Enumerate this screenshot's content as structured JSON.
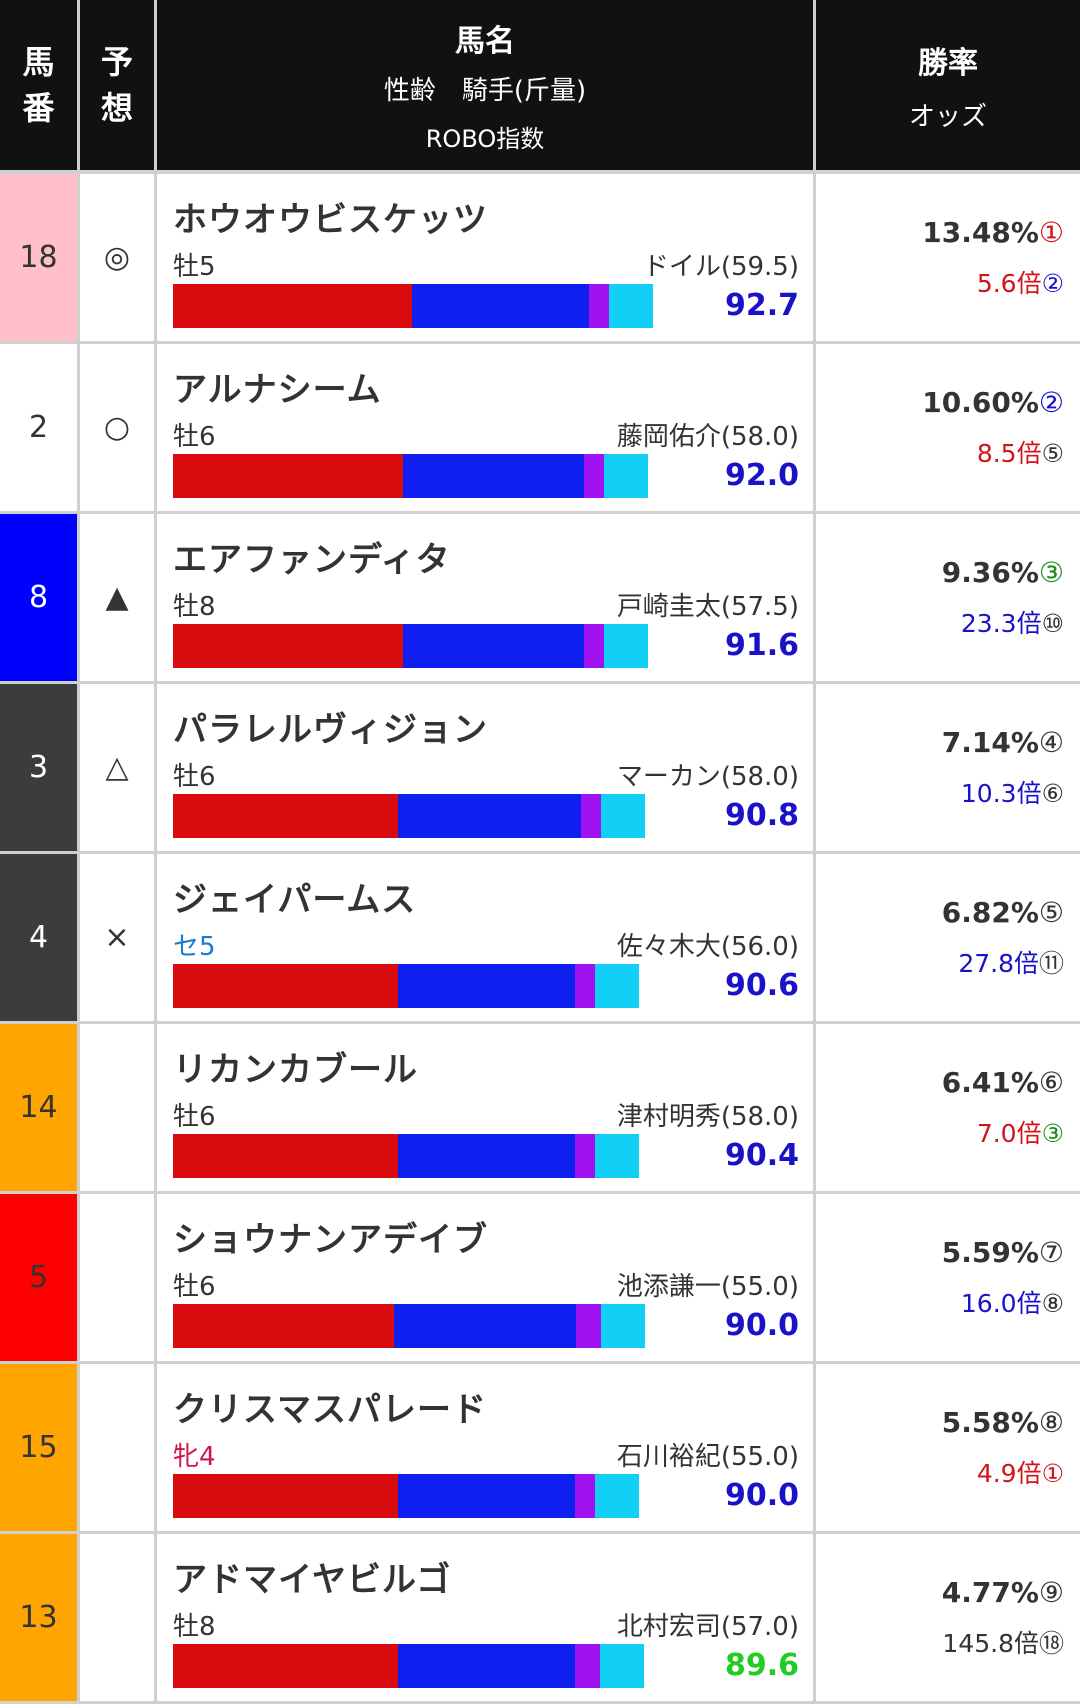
{
  "header": {
    "col_number": [
      "馬",
      "番"
    ],
    "col_prediction": [
      "予",
      "想"
    ],
    "col_name_title": "馬名",
    "col_name_sub": "性齢　騎手(斤量)",
    "col_name_sub2": "ROBO指数",
    "col_win_title": "勝率",
    "col_win_sub": "オッズ"
  },
  "colors": {
    "gate_pink": "#ffc0cb",
    "gate_white": "#ffffff",
    "gate_blue": "#0000ff",
    "gate_dark": "#3c3c3c",
    "gate_orange": "#ffa500",
    "gate_red": "#ff0000"
  },
  "rows": [
    {
      "number": "18",
      "gate_color": "#ffc0cb",
      "num_color": "#333333",
      "mark": "◎",
      "name": "ホウオウビスケッツ",
      "sex_age": "牡5",
      "sex_color": "#333333",
      "jockey": "ドイル(59.5)",
      "index": "92.7",
      "index_color": "#1a12c8",
      "bar": [
        0.374,
        0.276,
        0.032,
        0.068
      ],
      "win_pct": "13.48%",
      "win_rank": "①",
      "win_rank_color": "#d0141a",
      "odds": "5.6倍",
      "odds_color": "#d0141a",
      "odds_rank": "②",
      "odds_rank_color": "#1a12c8"
    },
    {
      "number": "2",
      "gate_color": "#ffffff",
      "num_color": "#333333",
      "mark": "○",
      "name": "アルナシーム",
      "sex_age": "牡6",
      "sex_color": "#333333",
      "jockey": "藤岡佑介(58.0)",
      "index": "92.0",
      "index_color": "#1a12c8",
      "bar": [
        0.36,
        0.283,
        0.031,
        0.068
      ],
      "win_pct": "10.60%",
      "win_rank": "②",
      "win_rank_color": "#1a12c8",
      "odds": "8.5倍",
      "odds_color": "#d0141a",
      "odds_rank": "⑤",
      "odds_rank_color": "#333333"
    },
    {
      "number": "8",
      "gate_color": "#0000ff",
      "num_color": "#ffffff",
      "mark": "▲",
      "name": "エアファンディタ",
      "sex_age": "牡8",
      "sex_color": "#333333",
      "jockey": "戸崎圭太(57.5)",
      "index": "91.6",
      "index_color": "#1a12c8",
      "bar": [
        0.36,
        0.283,
        0.032,
        0.068
      ],
      "win_pct": "9.36%",
      "win_rank": "③",
      "win_rank_color": "#1a8a1a",
      "odds": "23.3倍",
      "odds_color": "#1a12c8",
      "odds_rank": "⑩",
      "odds_rank_color": "#333333"
    },
    {
      "number": "3",
      "gate_color": "#3c3c3c",
      "num_color": "#ffffff",
      "mark": "△",
      "name": "パラレルヴィジョン",
      "sex_age": "牡6",
      "sex_color": "#333333",
      "jockey": "マーカン(58.0)",
      "index": "90.8",
      "index_color": "#1a12c8",
      "bar": [
        0.352,
        0.286,
        0.031,
        0.069
      ],
      "win_pct": "7.14%",
      "win_rank": "④",
      "win_rank_color": "#333333",
      "odds": "10.3倍",
      "odds_color": "#1a12c8",
      "odds_rank": "⑥",
      "odds_rank_color": "#333333"
    },
    {
      "number": "4",
      "gate_color": "#3c3c3c",
      "num_color": "#ffffff",
      "mark": "×",
      "name": "ジェイパームス",
      "sex_age": "セ5",
      "sex_color": "#1a7ad0",
      "jockey": "佐々木大(56.0)",
      "index": "90.6",
      "index_color": "#1a12c8",
      "bar": [
        0.352,
        0.276,
        0.031,
        0.069
      ],
      "win_pct": "6.82%",
      "win_rank": "⑤",
      "win_rank_color": "#333333",
      "odds": "27.8倍",
      "odds_color": "#1a12c8",
      "odds_rank": "⑪",
      "odds_rank_color": "#333333"
    },
    {
      "number": "14",
      "gate_color": "#ffa500",
      "num_color": "#333333",
      "mark": "",
      "name": "リカンカブール",
      "sex_age": "牡6",
      "sex_color": "#333333",
      "jockey": "津村明秀(58.0)",
      "index": "90.4",
      "index_color": "#1a12c8",
      "bar": [
        0.352,
        0.276,
        0.031,
        0.069
      ],
      "win_pct": "6.41%",
      "win_rank": "⑥",
      "win_rank_color": "#333333",
      "odds": "7.0倍",
      "odds_color": "#d0141a",
      "odds_rank": "③",
      "odds_rank_color": "#1a8a1a"
    },
    {
      "number": "5",
      "gate_color": "#ff0000",
      "num_color": "#333333",
      "mark": "",
      "name": "ショウナンアデイブ",
      "sex_age": "牡6",
      "sex_color": "#333333",
      "jockey": "池添謙一(55.0)",
      "index": "90.0",
      "index_color": "#1a12c8",
      "bar": [
        0.345,
        0.284,
        0.039,
        0.069
      ],
      "win_pct": "5.59%",
      "win_rank": "⑦",
      "win_rank_color": "#333333",
      "odds": "16.0倍",
      "odds_color": "#1a12c8",
      "odds_rank": "⑧",
      "odds_rank_color": "#333333"
    },
    {
      "number": "15",
      "gate_color": "#ffa500",
      "num_color": "#333333",
      "mark": "",
      "name": "クリスマスパレード",
      "sex_age": "牝4",
      "sex_color": "#d0144a",
      "jockey": "石川裕紀(55.0)",
      "index": "90.0",
      "index_color": "#1a12c8",
      "bar": [
        0.352,
        0.276,
        0.031,
        0.069
      ],
      "win_pct": "5.58%",
      "win_rank": "⑧",
      "win_rank_color": "#333333",
      "odds": "4.9倍",
      "odds_color": "#d0141a",
      "odds_rank": "①",
      "odds_rank_color": "#d0141a"
    },
    {
      "number": "13",
      "gate_color": "#ffa500",
      "num_color": "#333333",
      "mark": "",
      "name": "アドマイヤビルゴ",
      "sex_age": "牡8",
      "sex_color": "#333333",
      "jockey": "北村宏司(57.0)",
      "index": "89.6",
      "index_color": "#22cc22",
      "bar": [
        0.352,
        0.276,
        0.039,
        0.069
      ],
      "win_pct": "4.77%",
      "win_rank": "⑨",
      "win_rank_color": "#333333",
      "odds": "145.8倍",
      "odds_color": "#333333",
      "odds_rank": "⑱",
      "odds_rank_color": "#333333"
    }
  ]
}
